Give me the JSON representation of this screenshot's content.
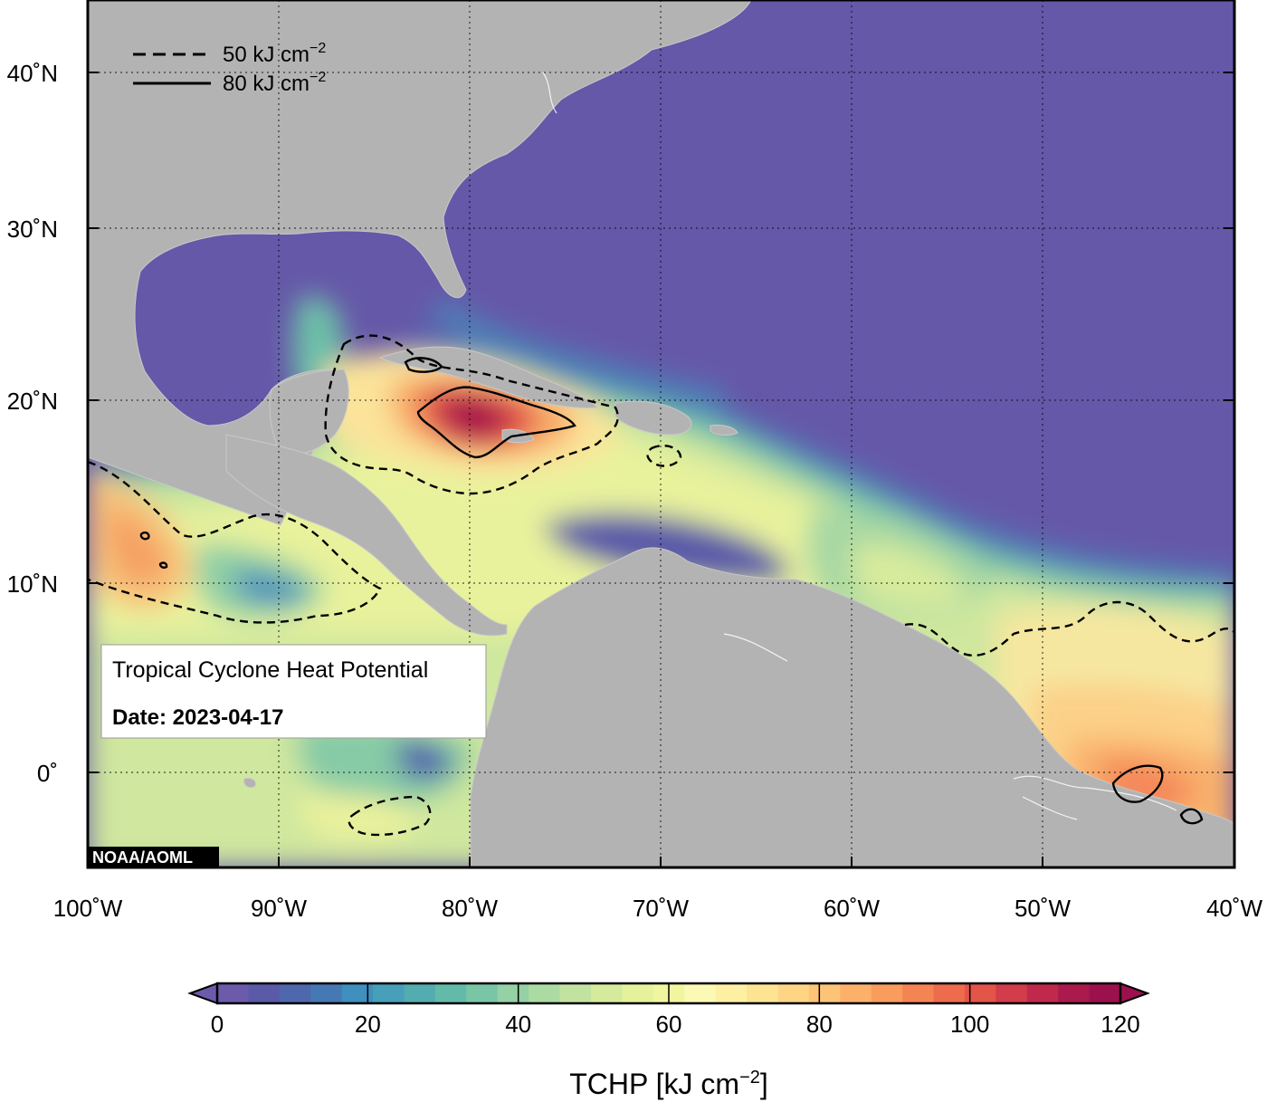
{
  "title": "Tropical Cyclone Heat Potential",
  "date_label": "Date: 2023-04-17",
  "credit": "NOAA/AOML",
  "legend": [
    {
      "style": "dashed",
      "value": "50",
      "unit_main": "kJ cm",
      "unit_exp": "−2"
    },
    {
      "style": "solid",
      "value": "80",
      "unit_main": "kJ cm",
      "unit_exp": "−2"
    }
  ],
  "map": {
    "lon_ticks": [
      "100˚W",
      "90˚W",
      "80˚W",
      "70˚W",
      "60˚W",
      "50˚W",
      "40˚W"
    ],
    "lat_ticks": [
      "40˚N",
      "30˚N",
      "20˚N",
      "10˚N",
      "0˚"
    ],
    "lon_range": [
      -100,
      -40
    ],
    "lat_range": [
      -5,
      45
    ],
    "grid": "dotted",
    "colors": {
      "land": "#b3b3b3",
      "ocean_low": "#6558a8",
      "ocean_high": "#a01350"
    }
  },
  "colorbar": {
    "label_main": "TCHP [kJ cm",
    "label_exp": "−2",
    "label_end": "]",
    "ticks": [
      "0",
      "20",
      "40",
      "60",
      "80",
      "100",
      "120"
    ],
    "range": [
      0,
      120
    ],
    "extend": "both",
    "colors": [
      "#6c5bab",
      "#5a5aa8",
      "#4f67ad",
      "#4679b4",
      "#3f8fbf",
      "#479fba",
      "#52acb0",
      "#63baa9",
      "#79c6a7",
      "#94d1a4",
      "#acdaa3",
      "#c2e3a0",
      "#d6ea9c",
      "#e6f29b",
      "#f1f59e",
      "#fbf9b4",
      "#fdf0a3",
      "#fde493",
      "#fdd585",
      "#fdc477",
      "#fcb06a",
      "#f99c5e",
      "#f58453",
      "#ee6b4d",
      "#e35449",
      "#d33c4a",
      "#c0294b",
      "#ab1a4c",
      "#9c114d"
    ]
  }
}
